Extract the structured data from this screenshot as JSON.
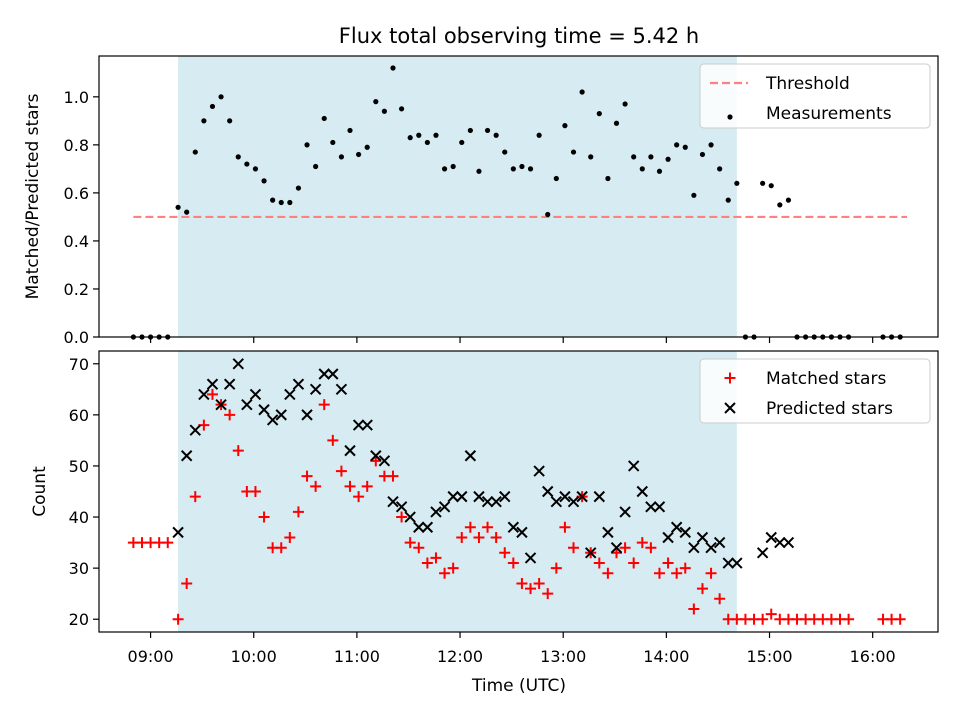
{
  "title": "Flux total observing time = 5.42 h",
  "xlabel": "Time (UTC)",
  "x_ticks": [
    "09:00",
    "10:00",
    "11:00",
    "12:00",
    "13:00",
    "14:00",
    "15:00",
    "16:00"
  ],
  "shade_color": "#add8e6",
  "chart_data": [
    {
      "type": "scatter",
      "ylabel": "Matched/Predicted stars",
      "ylim": [
        0,
        1.17
      ],
      "yticks": [
        "0.0",
        "0.2",
        "0.4",
        "0.6",
        "0.8",
        "1.0"
      ],
      "shaded_range": [
        "09:16",
        "14:41"
      ],
      "legend": {
        "position": "top-right",
        "entries": [
          "Threshold",
          "Measurements"
        ]
      },
      "threshold": {
        "name": "Threshold",
        "y": 0.5,
        "x_start": "08:50",
        "x_end": "16:20",
        "color": "#ff8080",
        "style": "dashed"
      },
      "series": [
        {
          "name": "Measurements",
          "marker": "dot",
          "color": "#000000",
          "x": [
            "08:50",
            "08:55",
            "09:00",
            "09:05",
            "09:10",
            "09:16",
            "09:21",
            "09:26",
            "09:31",
            "09:36",
            "09:41",
            "09:46",
            "09:51",
            "09:56",
            "10:01",
            "10:06",
            "10:11",
            "10:16",
            "10:21",
            "10:26",
            "10:31",
            "10:36",
            "10:41",
            "10:46",
            "10:51",
            "10:56",
            "11:01",
            "11:06",
            "11:11",
            "11:16",
            "11:21",
            "11:26",
            "11:31",
            "11:36",
            "11:41",
            "11:46",
            "11:51",
            "11:56",
            "12:01",
            "12:06",
            "12:11",
            "12:16",
            "12:21",
            "12:26",
            "12:31",
            "12:36",
            "12:41",
            "12:46",
            "12:51",
            "12:56",
            "13:01",
            "13:06",
            "13:11",
            "13:16",
            "13:21",
            "13:26",
            "13:31",
            "13:36",
            "13:41",
            "13:46",
            "13:51",
            "13:56",
            "14:01",
            "14:06",
            "14:11",
            "14:16",
            "14:21",
            "14:26",
            "14:31",
            "14:36",
            "14:41",
            "14:46",
            "14:51",
            "14:56",
            "15:01",
            "15:06",
            "15:11",
            "15:16",
            "15:21",
            "15:26",
            "15:31",
            "15:36",
            "15:41",
            "15:46",
            "16:06",
            "16:11",
            "16:16"
          ],
          "y": [
            0,
            0,
            0,
            0,
            0,
            0.54,
            0.52,
            0.77,
            0.9,
            0.96,
            1.0,
            0.9,
            0.75,
            0.72,
            0.7,
            0.65,
            0.57,
            0.56,
            0.56,
            0.62,
            0.8,
            0.71,
            0.91,
            0.81,
            0.75,
            0.86,
            0.76,
            0.79,
            0.98,
            0.94,
            1.12,
            0.95,
            0.83,
            0.84,
            0.81,
            0.84,
            0.7,
            0.71,
            0.81,
            0.86,
            0.69,
            0.86,
            0.84,
            0.77,
            0.7,
            0.71,
            0.7,
            0.84,
            0.51,
            0.66,
            0.88,
            0.77,
            1.02,
            0.75,
            0.93,
            0.66,
            0.89,
            0.97,
            0.75,
            0.7,
            0.75,
            0.69,
            0.74,
            0.8,
            0.79,
            0.59,
            0.76,
            0.8,
            0.7,
            0.57,
            0.64,
            0,
            0,
            0.64,
            0.63,
            0.55,
            0.57,
            0,
            0,
            0,
            0,
            0,
            0,
            0,
            0,
            0,
            0
          ]
        }
      ]
    },
    {
      "type": "scatter",
      "ylabel": "Count",
      "ylim": [
        17.5,
        72.5
      ],
      "yticks": [
        "20",
        "30",
        "40",
        "50",
        "60",
        "70"
      ],
      "shaded_range": [
        "09:16",
        "14:41"
      ],
      "legend": {
        "position": "top-right",
        "entries": [
          "Matched stars",
          "Predicted stars"
        ]
      },
      "series": [
        {
          "name": "Matched stars",
          "marker": "plus",
          "color": "#ff0000",
          "x": [
            "08:50",
            "08:55",
            "09:00",
            "09:05",
            "09:10",
            "09:16",
            "09:21",
            "09:26",
            "09:31",
            "09:36",
            "09:41",
            "09:46",
            "09:51",
            "09:56",
            "10:01",
            "10:06",
            "10:11",
            "10:16",
            "10:21",
            "10:26",
            "10:31",
            "10:36",
            "10:41",
            "10:46",
            "10:51",
            "10:56",
            "11:01",
            "11:06",
            "11:11",
            "11:16",
            "11:21",
            "11:26",
            "11:31",
            "11:36",
            "11:41",
            "11:46",
            "11:51",
            "11:56",
            "12:01",
            "12:06",
            "12:11",
            "12:16",
            "12:21",
            "12:26",
            "12:31",
            "12:36",
            "12:41",
            "12:46",
            "12:51",
            "12:56",
            "13:01",
            "13:06",
            "13:11",
            "13:16",
            "13:21",
            "13:26",
            "13:31",
            "13:36",
            "13:41",
            "13:46",
            "13:51",
            "13:56",
            "14:01",
            "14:06",
            "14:11",
            "14:16",
            "14:21",
            "14:26",
            "14:31",
            "14:36",
            "14:41",
            "14:46",
            "14:51",
            "14:56",
            "15:01",
            "15:06",
            "15:11",
            "15:16",
            "15:21",
            "15:26",
            "15:31",
            "15:36",
            "15:41",
            "15:46",
            "16:06",
            "16:11",
            "16:16"
          ],
          "y": [
            35,
            35,
            35,
            35,
            35,
            20,
            27,
            44,
            58,
            64,
            62,
            60,
            53,
            45,
            45,
            40,
            34,
            34,
            36,
            41,
            48,
            46,
            62,
            55,
            49,
            46,
            44,
            46,
            51,
            48,
            48,
            40,
            35,
            34,
            31,
            32,
            29,
            30,
            36,
            38,
            36,
            38,
            36,
            33,
            31,
            27,
            26,
            27,
            25,
            30,
            38,
            34,
            44,
            33,
            31,
            29,
            33,
            34,
            31,
            35,
            34,
            29,
            31,
            29,
            30,
            22,
            26,
            29,
            24,
            20,
            20,
            20,
            20,
            20,
            21,
            20,
            20,
            20,
            20,
            20,
            20,
            20,
            20,
            20,
            20,
            20,
            20
          ]
        },
        {
          "name": "Predicted stars",
          "marker": "x",
          "color": "#000000",
          "x": [
            "09:16",
            "09:21",
            "09:26",
            "09:31",
            "09:36",
            "09:41",
            "09:46",
            "09:51",
            "09:56",
            "10:01",
            "10:06",
            "10:11",
            "10:16",
            "10:21",
            "10:26",
            "10:31",
            "10:36",
            "10:41",
            "10:46",
            "10:51",
            "10:56",
            "11:01",
            "11:06",
            "11:11",
            "11:16",
            "11:21",
            "11:26",
            "11:31",
            "11:36",
            "11:41",
            "11:46",
            "11:51",
            "11:56",
            "12:01",
            "12:06",
            "12:11",
            "12:16",
            "12:21",
            "12:26",
            "12:31",
            "12:36",
            "12:41",
            "12:46",
            "12:51",
            "12:56",
            "13:01",
            "13:06",
            "13:11",
            "13:16",
            "13:21",
            "13:26",
            "13:31",
            "13:36",
            "13:41",
            "13:46",
            "13:51",
            "13:56",
            "14:01",
            "14:06",
            "14:11",
            "14:16",
            "14:21",
            "14:26",
            "14:31",
            "14:36",
            "14:41",
            "14:56",
            "15:01",
            "15:06",
            "15:11"
          ],
          "y": [
            37,
            52,
            57,
            64,
            66,
            62,
            66,
            70,
            62,
            64,
            61,
            59,
            60,
            64,
            66,
            60,
            65,
            68,
            68,
            65,
            53,
            58,
            58,
            52,
            51,
            43,
            42,
            40,
            38,
            38,
            41,
            42,
            44,
            44,
            52,
            44,
            43,
            43,
            44,
            38,
            37,
            32,
            49,
            45,
            43,
            44,
            43,
            44,
            33,
            44,
            37,
            34,
            41,
            50,
            45,
            42,
            42,
            36,
            38,
            37,
            34,
            36,
            34,
            35,
            31,
            31,
            33,
            36,
            35,
            35
          ]
        }
      ]
    }
  ]
}
